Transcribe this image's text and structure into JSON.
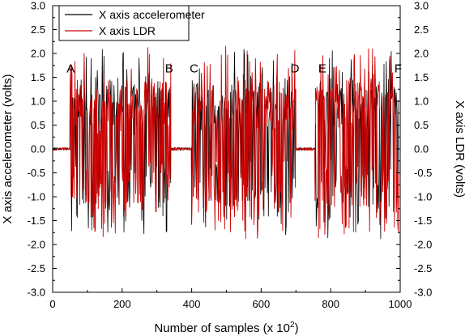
{
  "chart_data": {
    "type": "line",
    "xlabel": "Number of samples (x 10",
    "xlabel_sup": "2",
    "xlabel_end": ")",
    "ylabel_left": "X axis accelerometer (volts)",
    "ylabel_right": "X axis LDR (volts)",
    "xlim": [
      0,
      1000
    ],
    "ylim": [
      -3.0,
      3.0
    ],
    "x_ticks": [
      0,
      200,
      400,
      600,
      800,
      1000
    ],
    "y_ticks": [
      -3.0,
      -2.5,
      -2.0,
      -1.5,
      -1.0,
      -0.5,
      0.0,
      0.5,
      1.0,
      1.5,
      2.0,
      2.5,
      3.0
    ],
    "y_tick_labels": [
      "-3.0",
      "-2.5",
      "-2.0",
      "-1.5",
      "-1.0",
      "-0.5",
      "0.0",
      "0.5",
      "1.0",
      "1.5",
      "2.0",
      "2.5",
      "3.0"
    ],
    "grid": false,
    "legend_position": "top-left",
    "series": [
      {
        "name": "X axis accelerometer",
        "color": "#000000"
      },
      {
        "name": "X axis LDR",
        "color": "#cc0000"
      }
    ],
    "segments": [
      {
        "start": 0,
        "end": 50,
        "active": false
      },
      {
        "start": 50,
        "end": 340,
        "active": true
      },
      {
        "start": 340,
        "end": 400,
        "active": false
      },
      {
        "start": 400,
        "end": 700,
        "active": true
      },
      {
        "start": 700,
        "end": 755,
        "active": false
      },
      {
        "start": 755,
        "end": 995,
        "active": true
      }
    ],
    "annotations": [
      {
        "text": "A",
        "x": 52,
        "y": 1.6
      },
      {
        "text": "B",
        "x": 335,
        "y": 1.6
      },
      {
        "text": "C",
        "x": 407,
        "y": 1.6
      },
      {
        "text": "D",
        "x": 697,
        "y": 1.6
      },
      {
        "text": "E",
        "x": 776,
        "y": 1.6
      },
      {
        "text": "F",
        "x": 994,
        "y": 1.6
      }
    ]
  }
}
